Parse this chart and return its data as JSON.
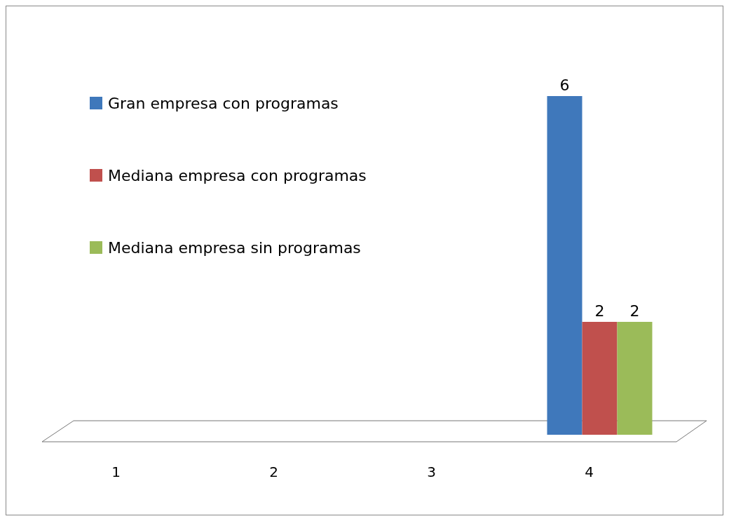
{
  "chart_data": {
    "type": "bar",
    "categories": [
      "1",
      "2",
      "3",
      "4"
    ],
    "series": [
      {
        "name": "Gran empresa con programas",
        "color": "#3f78bb",
        "values": [
          null,
          null,
          null,
          6
        ]
      },
      {
        "name": "Mediana empresa con programas",
        "color": "#c0504d",
        "values": [
          null,
          null,
          null,
          2
        ]
      },
      {
        "name": "Mediana empresa sin programas",
        "color": "#9bbb59",
        "values": [
          null,
          null,
          null,
          2
        ]
      }
    ],
    "data_labels": true,
    "legend": "top left",
    "grid": false
  }
}
